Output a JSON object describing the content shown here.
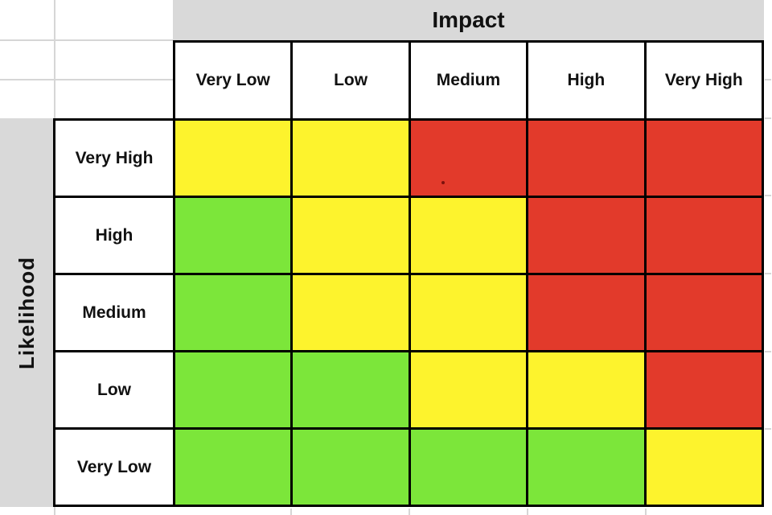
{
  "chart_data": {
    "type": "heatmap",
    "title": "",
    "xlabel": "Impact",
    "ylabel": "Likelihood",
    "x_categories": [
      "Very Low",
      "Low",
      "Medium",
      "High",
      "Very High"
    ],
    "y_categories": [
      "Very High",
      "High",
      "Medium",
      "Low",
      "Very Low"
    ],
    "values": [
      [
        "yellow",
        "yellow",
        "red",
        "red",
        "red"
      ],
      [
        "green",
        "yellow",
        "yellow",
        "red",
        "red"
      ],
      [
        "green",
        "yellow",
        "yellow",
        "red",
        "red"
      ],
      [
        "green",
        "green",
        "yellow",
        "yellow",
        "red"
      ],
      [
        "green",
        "green",
        "green",
        "green",
        "yellow"
      ]
    ],
    "color_map": {
      "green": "#7ce63a",
      "yellow": "#fdf32d",
      "red": "#e23a2b"
    },
    "legend": "none",
    "grid": "on"
  },
  "axes": {
    "impact_label": "Impact",
    "likelihood_label": "Likelihood"
  },
  "colors": {
    "header_band": "#d9d9d9",
    "cell_border": "#000000",
    "faint_gridline": "#d6d6d6"
  }
}
